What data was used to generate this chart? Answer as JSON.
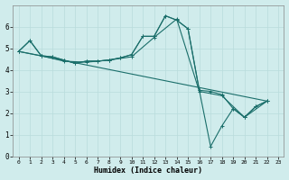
{
  "xlabel": "Humidex (Indice chaleur)",
  "bg_color": "#d0ecec",
  "grid_color": "#b8dcdc",
  "line_color": "#1a6e6a",
  "xlim": [
    -0.5,
    23.5
  ],
  "ylim": [
    0,
    7
  ],
  "xticks": [
    0,
    1,
    2,
    3,
    4,
    5,
    6,
    7,
    8,
    9,
    10,
    11,
    12,
    13,
    14,
    15,
    16,
    17,
    18,
    19,
    20,
    21,
    22,
    23
  ],
  "yticks": [
    0,
    1,
    2,
    3,
    4,
    5,
    6
  ],
  "series": [
    {
      "x": [
        0,
        1,
        2,
        3,
        4,
        5,
        6,
        7,
        8,
        9,
        10,
        11,
        12,
        13,
        14,
        15,
        16,
        17,
        18,
        19,
        20,
        21,
        22
      ],
      "y": [
        4.85,
        5.35,
        4.65,
        4.6,
        4.45,
        4.3,
        4.4,
        4.4,
        4.45,
        4.55,
        4.7,
        5.55,
        5.55,
        6.5,
        6.3,
        5.9,
        3.05,
        3.0,
        2.85,
        2.2,
        1.8,
        2.3,
        2.55
      ],
      "marker": true
    },
    {
      "x": [
        0,
        1,
        2,
        3,
        4,
        5,
        6,
        7,
        8,
        9,
        10,
        11,
        12,
        13,
        14,
        15,
        16,
        17,
        18,
        19,
        20,
        21,
        22
      ],
      "y": [
        4.85,
        5.35,
        4.65,
        4.6,
        4.45,
        4.3,
        4.4,
        4.4,
        4.45,
        4.55,
        4.7,
        5.55,
        5.55,
        6.5,
        6.3,
        5.9,
        3.05,
        0.45,
        1.4,
        2.2,
        1.8,
        2.3,
        2.55
      ],
      "marker": true
    },
    {
      "x": [
        0,
        2,
        4,
        6,
        8,
        10,
        12,
        14,
        16,
        18,
        20,
        22
      ],
      "y": [
        4.85,
        4.65,
        4.4,
        4.35,
        4.45,
        4.6,
        5.5,
        6.35,
        3.0,
        2.8,
        1.8,
        2.55
      ],
      "marker": true
    },
    {
      "x": [
        0,
        22
      ],
      "y": [
        4.85,
        2.55
      ],
      "marker": false
    }
  ]
}
